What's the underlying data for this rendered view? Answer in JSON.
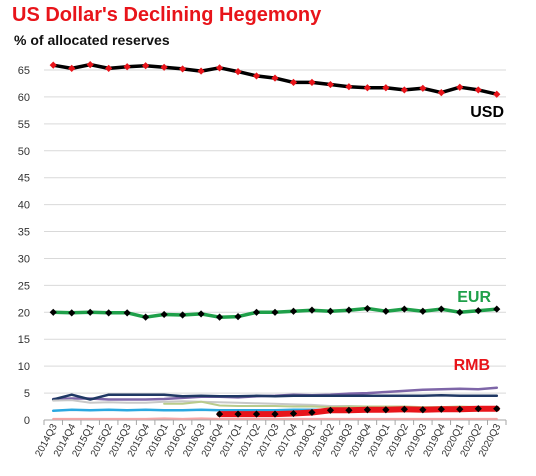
{
  "title": "US Dollar's  Declining Hegemony",
  "subtitle": "% of allocated reserves",
  "chart_data": {
    "type": "line",
    "title": "US Dollar's  Declining Hegemony",
    "subtitle": "% of allocated reserves",
    "xlabel": "",
    "ylabel": "",
    "ylim": [
      0,
      65
    ],
    "yticks": [
      0,
      5,
      10,
      15,
      20,
      25,
      30,
      35,
      40,
      45,
      50,
      55,
      60,
      65
    ],
    "grid": true,
    "legend": "none",
    "categories": [
      "2014Q3",
      "2014Q4",
      "2015Q1",
      "2015Q2",
      "2015Q3",
      "2015Q4",
      "2016Q1",
      "2016Q2",
      "2016Q3",
      "2016Q4",
      "2017Q1",
      "2017Q2",
      "2017Q3",
      "2017Q4",
      "2018Q1",
      "2018Q2",
      "2018Q3",
      "2018Q4",
      "2019Q1",
      "2019Q2",
      "2019Q3",
      "2019Q4",
      "2020Q1",
      "2020Q2",
      "2020Q3"
    ],
    "series": [
      {
        "name": "USD",
        "color": "#000000",
        "marker_color": "#e8141a",
        "width": 3.5,
        "labeled": true,
        "values": [
          65.9,
          65.3,
          66.0,
          65.3,
          65.6,
          65.8,
          65.5,
          65.2,
          64.8,
          65.4,
          64.7,
          63.9,
          63.5,
          62.7,
          62.7,
          62.3,
          61.9,
          61.7,
          61.7,
          61.3,
          61.6,
          60.8,
          61.8,
          61.3,
          60.5
        ]
      },
      {
        "name": "EUR",
        "color": "#1fa04a",
        "marker_color": "#000000",
        "width": 3.5,
        "labeled": true,
        "values": [
          20.0,
          19.9,
          20.0,
          19.9,
          19.9,
          19.1,
          19.6,
          19.5,
          19.7,
          19.1,
          19.2,
          20.0,
          20.0,
          20.2,
          20.4,
          20.2,
          20.4,
          20.7,
          20.2,
          20.6,
          20.2,
          20.6,
          20.0,
          20.3,
          20.6
        ]
      },
      {
        "name": "RMB",
        "color": "#e8141a",
        "marker_color": "#000000",
        "width": 6,
        "labeled": true,
        "values": [
          null,
          null,
          null,
          null,
          null,
          null,
          null,
          null,
          null,
          1.1,
          1.1,
          1.1,
          1.1,
          1.2,
          1.4,
          1.8,
          1.8,
          1.9,
          1.9,
          2.0,
          1.9,
          2.0,
          2.0,
          2.1,
          2.1
        ]
      },
      {
        "name": "",
        "color": "#7e66a8",
        "width": 2.5,
        "labeled": false,
        "values": [
          3.9,
          4.0,
          4.0,
          3.8,
          3.8,
          3.8,
          3.9,
          4.1,
          4.3,
          4.3,
          4.2,
          4.4,
          4.5,
          4.7,
          4.6,
          4.7,
          4.9,
          5.0,
          5.2,
          5.4,
          5.6,
          5.7,
          5.8,
          5.7,
          6.0
        ]
      },
      {
        "name": "",
        "color": "#1f3864",
        "width": 2.5,
        "labeled": false,
        "values": [
          3.8,
          4.7,
          3.8,
          4.7,
          4.7,
          4.7,
          4.7,
          4.4,
          4.5,
          4.4,
          4.4,
          4.5,
          4.4,
          4.5,
          4.5,
          4.5,
          4.5,
          4.5,
          4.5,
          4.5,
          4.5,
          4.6,
          4.5,
          4.5,
          4.5
        ]
      },
      {
        "name": "",
        "color": "#c8c8c8",
        "width": 2,
        "labeled": false,
        "values": [
          3.6,
          3.7,
          3.2,
          3.3,
          3.2,
          3.2,
          3.4,
          3.5,
          3.4,
          3.3,
          3.2,
          3.1,
          3.0,
          2.9,
          2.8,
          2.6,
          2.6,
          2.5,
          2.5,
          2.4,
          2.3,
          2.3,
          2.2,
          2.2,
          2.1
        ]
      },
      {
        "name": "",
        "color": "#b9cb8c",
        "width": 2,
        "labeled": false,
        "values": [
          null,
          null,
          null,
          null,
          null,
          null,
          3.0,
          3.0,
          3.4,
          2.7,
          2.6,
          2.6,
          2.6,
          2.5,
          2.5,
          2.4,
          2.5,
          2.5,
          2.5,
          2.5,
          2.4,
          2.4,
          2.5,
          2.4,
          2.3
        ]
      },
      {
        "name": "",
        "color": "#2aa8e0",
        "width": 2.5,
        "labeled": false,
        "values": [
          1.7,
          1.9,
          1.8,
          1.9,
          1.8,
          1.9,
          1.8,
          1.8,
          1.9,
          1.8,
          1.8,
          1.8,
          1.8,
          1.9,
          1.9,
          1.8,
          1.7,
          1.8,
          1.8,
          1.8,
          1.8,
          1.9,
          1.8,
          1.8,
          1.8
        ]
      },
      {
        "name": "",
        "color": "#f4a6a6",
        "width": 2,
        "labeled": false,
        "values": [
          0.2,
          0.2,
          0.2,
          0.2,
          0.2,
          0.2,
          0.3,
          0.2,
          0.3,
          0.2,
          0.2,
          0.2,
          0.2,
          0.2,
          0.2,
          0.2,
          0.2,
          0.2,
          0.2,
          0.2,
          0.2,
          0.2,
          0.2,
          0.2,
          0.2
        ]
      }
    ]
  }
}
